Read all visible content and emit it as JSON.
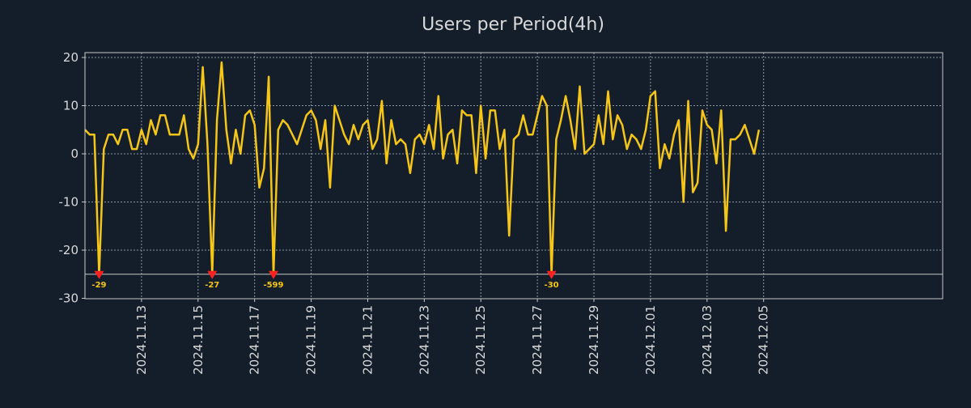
{
  "chart_data": {
    "type": "line",
    "title": "Users per Period(4h)",
    "xlabel": "",
    "ylabel": "",
    "ylim": [
      -30,
      21
    ],
    "yticks": [
      20,
      10,
      0,
      -10,
      -20,
      -30
    ],
    "x_range": [
      0,
      182
    ],
    "x_tick_labels": [
      {
        "x": 12,
        "label": "2024.11.13"
      },
      {
        "x": 24,
        "label": "2024.11.15"
      },
      {
        "x": 36,
        "label": "2024.11.17"
      },
      {
        "x": 48,
        "label": "2024.11.19"
      },
      {
        "x": 60,
        "label": "2024.11.21"
      },
      {
        "x": 72,
        "label": "2024.11.23"
      },
      {
        "x": 84,
        "label": "2024.11.25"
      },
      {
        "x": 96,
        "label": "2024.11.27"
      },
      {
        "x": 108,
        "label": "2024.11.29"
      },
      {
        "x": 120,
        "label": "2024.12.01"
      },
      {
        "x": 132,
        "label": "2024.12.03"
      },
      {
        "x": 144,
        "label": "2024.12.05"
      }
    ],
    "grid": true,
    "floor_value": -25,
    "series": [
      {
        "name": "Users",
        "color": "#f5c518",
        "values": [
          5,
          4,
          4,
          -25,
          1,
          4,
          4,
          2,
          5,
          5,
          1,
          1,
          5,
          2,
          7,
          4,
          8,
          8,
          4,
          4,
          4,
          8,
          1,
          -1,
          2,
          18,
          2,
          -25,
          7,
          19,
          5,
          -2,
          5,
          0,
          8,
          9,
          6,
          -7,
          -3,
          16,
          -25,
          5,
          7,
          6,
          4,
          2,
          5,
          8,
          9,
          7,
          1,
          7,
          -7,
          10,
          7,
          4,
          2,
          6,
          3,
          6,
          7,
          1,
          3,
          11,
          -2,
          7,
          2,
          3,
          2,
          -4,
          3,
          4,
          2,
          6,
          1,
          12,
          -1,
          4,
          5,
          -2,
          9,
          8,
          8,
          -4,
          10,
          -1,
          9,
          9,
          1,
          5,
          -17,
          3,
          4,
          8,
          4,
          4,
          8,
          12,
          10,
          -25,
          3,
          7,
          12,
          7,
          1,
          14,
          0,
          1,
          2,
          8,
          2,
          13,
          3,
          8,
          6,
          1,
          4,
          3,
          1,
          5,
          12,
          13,
          -3,
          2,
          -1,
          4,
          7,
          -10,
          11,
          -8,
          -6,
          9,
          6,
          5,
          -2,
          9,
          -16,
          3,
          3,
          4,
          6,
          3,
          0,
          5
        ]
      }
    ],
    "annotations": [
      {
        "x": 3,
        "label": "-29",
        "color": "#ff2020"
      },
      {
        "x": 27,
        "label": "-27",
        "color": "#ff2020"
      },
      {
        "x": 40,
        "label": "-599",
        "color": "#ff2020"
      },
      {
        "x": 99,
        "label": "-30",
        "color": "#ff2020"
      }
    ],
    "colors": {
      "background": "#141e2b",
      "text": "#d9d9d9",
      "grid": "#8a96a3",
      "axis": "#c8c8c8",
      "annotation_text": "#f5c518"
    }
  }
}
